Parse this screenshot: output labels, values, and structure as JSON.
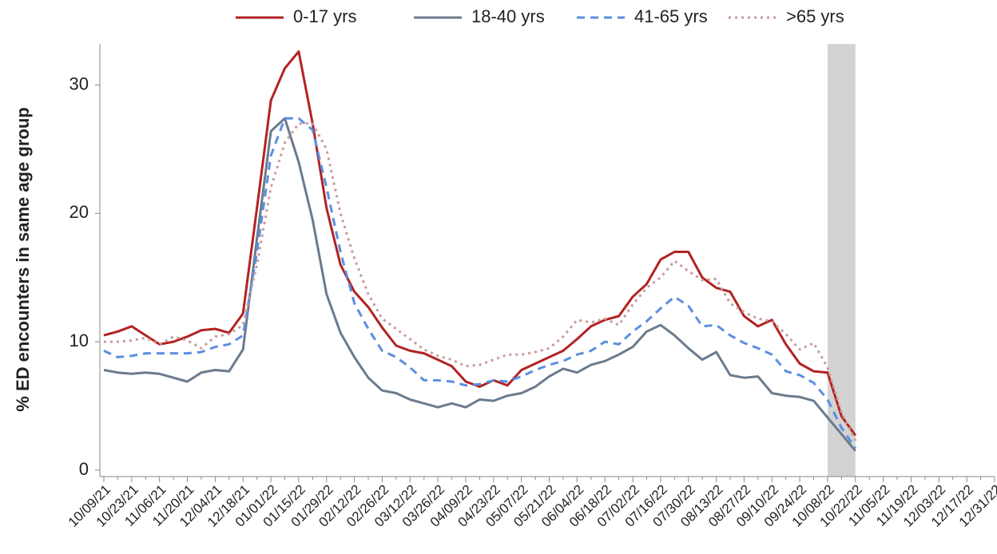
{
  "chart_data": {
    "type": "line",
    "y_label": "% ED encounters in same age group",
    "categories": [
      "10/09/21",
      null,
      "10/23/21",
      null,
      "11/06/21",
      null,
      "11/20/21",
      null,
      "12/04/21",
      null,
      "12/18/21",
      null,
      "01/01/22",
      null,
      "01/15/22",
      null,
      "01/29/22",
      null,
      "02/12/22",
      null,
      "02/26/22",
      null,
      "03/12/22",
      null,
      "03/26/22",
      null,
      "04/09/22",
      null,
      "04/23/22",
      null,
      "05/07/22",
      null,
      "05/21/22",
      null,
      "06/04/22",
      null,
      "06/18/22",
      null,
      "07/02/22",
      null,
      "07/16/22",
      null,
      "07/30/22",
      null,
      "08/13/22",
      null,
      "08/27/22",
      null,
      "09/10/22",
      null,
      "09/24/22",
      null,
      "10/08/22",
      null,
      "10/22/22",
      null,
      "11/05/22",
      null,
      "11/19/22",
      null,
      "12/03/22",
      null,
      "12/17/22",
      null,
      "12/31/22"
    ],
    "series": [
      {
        "name": "0-17 yrs",
        "color": "#b22222",
        "dash": "solid",
        "values": [
          10.5,
          10.8,
          11.2,
          10.5,
          9.8,
          10.0,
          10.4,
          10.9,
          11.0,
          10.7,
          12.2,
          20.4,
          28.8,
          31.3,
          32.6,
          27.0,
          20.4,
          16.0,
          13.9,
          12.7,
          11.1,
          9.7,
          9.3,
          9.1,
          8.6,
          8.1,
          6.9,
          6.5,
          7.0,
          6.6,
          7.8,
          8.3,
          8.8,
          9.3,
          10.2,
          11.2,
          11.7,
          12.0,
          13.5,
          14.5,
          16.4,
          17.0,
          17.0,
          15.0,
          14.2,
          13.9,
          12.0,
          11.2,
          11.7,
          9.8,
          8.3,
          7.7,
          7.6,
          4.2,
          2.7,
          null,
          null,
          null,
          null,
          null,
          null,
          null,
          null,
          null,
          null
        ]
      },
      {
        "name": "18-40 yrs",
        "color": "#6b7b8c",
        "dash": "solid",
        "values": [
          7.8,
          7.6,
          7.5,
          7.6,
          7.5,
          7.2,
          6.9,
          7.6,
          7.8,
          7.7,
          9.4,
          18,
          26.4,
          27.4,
          24.0,
          19.5,
          13.7,
          10.7,
          8.8,
          7.2,
          6.2,
          6.0,
          5.5,
          5.2,
          4.9,
          5.2,
          4.9,
          5.5,
          5.4,
          5.8,
          6.0,
          6.5,
          7.3,
          7.9,
          7.6,
          8.2,
          8.5,
          9.0,
          9.6,
          10.8,
          11.3,
          10.5,
          9.5,
          8.6,
          9.2,
          7.4,
          7.2,
          7.3,
          6.0,
          5.8,
          5.7,
          5.4,
          4.1,
          2.8,
          1.5,
          null,
          null,
          null,
          null,
          null,
          null,
          null,
          null,
          null,
          null
        ]
      },
      {
        "name": "41-65 yrs",
        "color": "#5b8fe0",
        "dash": "dashed",
        "values": [
          9.3,
          8.8,
          8.9,
          9.1,
          9.1,
          9.1,
          9.1,
          9.2,
          9.6,
          9.8,
          10.5,
          17,
          24.5,
          27.4,
          27.4,
          26.5,
          22,
          17,
          13,
          11,
          9.3,
          8.8,
          8.0,
          7.0,
          7.0,
          6.9,
          6.6,
          6.7,
          7.0,
          6.9,
          7.3,
          7.8,
          8.2,
          8.5,
          9.0,
          9.3,
          10.0,
          9.8,
          10.8,
          11.6,
          12.6,
          13.5,
          12.8,
          11.2,
          11.3,
          10.5,
          9.9,
          9.5,
          9.0,
          7.7,
          7.4,
          6.8,
          5.5,
          3.3,
          1.7,
          null,
          null,
          null,
          null,
          null,
          null,
          null,
          null,
          null,
          null
        ]
      },
      {
        "name": ">65 yrs",
        "color": "#c99a9a",
        "dash": "dotted",
        "values": [
          10.0,
          10.0,
          10.1,
          10.3,
          9.8,
          10.4,
          10.1,
          9.5,
          10.4,
          10.6,
          11.3,
          16,
          22,
          25.5,
          27,
          27,
          25,
          20,
          16.5,
          13.7,
          11.8,
          11.0,
          10.2,
          9.4,
          8.9,
          8.6,
          8.1,
          8.2,
          8.6,
          9.0,
          9.0,
          9.2,
          9.5,
          10.4,
          11.7,
          11.5,
          11.8,
          11.3,
          12.9,
          14.2,
          15.0,
          16.3,
          15.5,
          14.8,
          14.9,
          13.0,
          12.3,
          11.8,
          11.6,
          10.6,
          9.4,
          9.9,
          8.0,
          4.5,
          2.3,
          null,
          null,
          null,
          null,
          null,
          null,
          null,
          null,
          null,
          null
        ]
      }
    ],
    "ylim": [
      -0.5,
      33.2
    ],
    "yticks": [
      0,
      10,
      20,
      30
    ]
  }
}
